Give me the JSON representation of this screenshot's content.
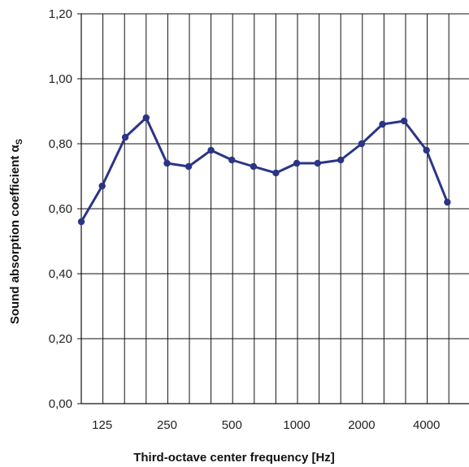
{
  "chart_data": {
    "type": "line",
    "xlabel": "Third-octave center frequency [Hz]",
    "ylabel": "Sound absorption coefficient α",
    "ylabel_subscript": "S",
    "x_scale": "log",
    "grid": true,
    "ylim": [
      0.0,
      1.2
    ],
    "y_ticks": [
      0.0,
      0.2,
      0.4,
      0.6,
      0.8,
      1.0,
      1.2
    ],
    "y_tick_labels": [
      "0,00",
      "0,20",
      "0,40",
      "0,60",
      "0,80",
      "1,00",
      "1,20"
    ],
    "x_tick_labels": [
      "125",
      "250",
      "500",
      "1000",
      "2000",
      "4000"
    ],
    "series": [
      {
        "color": "#2a3585",
        "x": [
          100,
          125,
          160,
          200,
          250,
          315,
          400,
          500,
          630,
          800,
          1000,
          1250,
          1600,
          2000,
          2500,
          3150,
          4000,
          5000
        ],
        "y": [
          0.56,
          0.67,
          0.82,
          0.88,
          0.74,
          0.73,
          0.78,
          0.75,
          0.73,
          0.71,
          0.74,
          0.74,
          0.75,
          0.8,
          0.86,
          0.87,
          0.78,
          0.62
        ]
      }
    ]
  }
}
